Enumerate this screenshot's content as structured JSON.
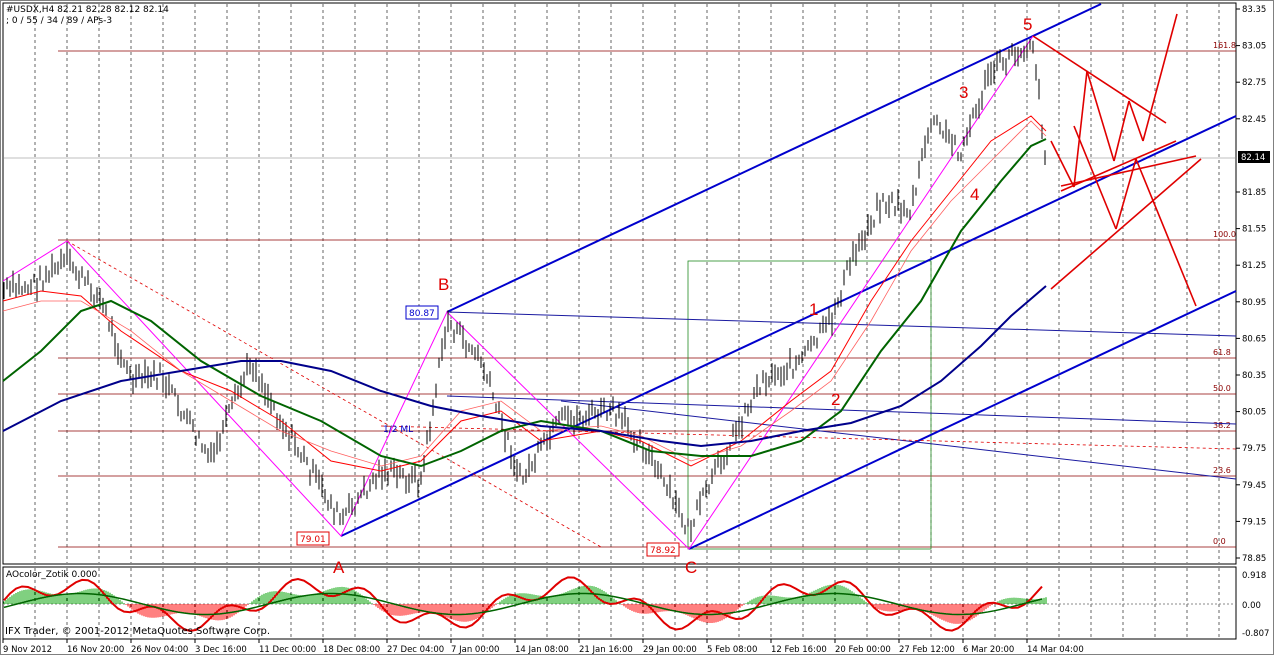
{
  "chart_info": {
    "symbol_line": "#USDX,H4  82.21 82.28 82.12 82.14",
    "indicator_line": "; 0 / 55 / 34 / 89 / APs-3"
  },
  "price_axis": {
    "ticks": [
      "83.35",
      "83.05",
      "82.75",
      "82.45",
      "82.14",
      "81.85",
      "81.55",
      "81.25",
      "80.95",
      "80.65",
      "80.35",
      "80.05",
      "79.75",
      "79.45",
      "79.15",
      "78.85"
    ],
    "current_price": "82.14"
  },
  "time_axis": {
    "ticks": [
      "9 Nov 2012",
      "16 Nov 20:00",
      "26 Nov 04:00",
      "3 Dec 16:00",
      "11 Dec 00:00",
      "18 Dec 08:00",
      "27 Dec 04:00",
      "7 Jan 00:00",
      "14 Jan 08:00",
      "21 Jan 16:00",
      "29 Jan 00:00",
      "5 Feb 08:00",
      "12 Feb 16:00",
      "20 Feb 00:00",
      "27 Feb 12:00",
      "6 Mar 20:00",
      "14 Mar 04:00"
    ]
  },
  "fibonacci": {
    "levels": [
      "161.8",
      "100.0",
      "61.8",
      "50.0",
      "38.2",
      "23.6",
      "0.0"
    ]
  },
  "wave_labels": {
    "a": "A",
    "b": "B",
    "c": "C",
    "w1": "1",
    "w2": "2",
    "w3": "3",
    "w4": "4",
    "w5": "5"
  },
  "price_boxes": {
    "b_high": "80.87",
    "a_low": "79.01",
    "c_low": "78.92",
    "half": "1/2 ML"
  },
  "oscillator": {
    "name": "AOcolor_Zotik 0.000",
    "ticks": [
      "0.918",
      "0.00",
      "-0.807"
    ]
  },
  "footer": {
    "copyright": "IFX Trader, © 2001-2012 MetaQuotes Software Corp."
  },
  "colors": {
    "bull_candle": "#000000",
    "ma_red": "#ff0000",
    "ma_green": "#006400",
    "ma_navy": "#00008b",
    "channel_blue": "#0000cd",
    "fib_line": "#8b0000",
    "zigzag": "#ff00ff",
    "ao_green": "#00a000",
    "ao_red": "#ff0000"
  }
}
